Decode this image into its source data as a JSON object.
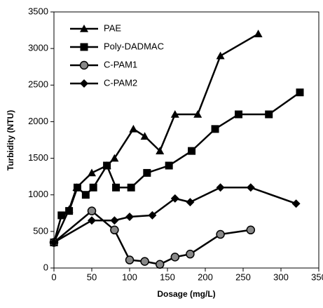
{
  "chart_data": {
    "type": "line",
    "xlabel": "Dosage (mg/L)",
    "ylabel": "Turbidity (NTU)",
    "xlim": [
      0,
      350
    ],
    "ylim": [
      0,
      3500
    ],
    "xticks": [
      0,
      50,
      100,
      150,
      200,
      250,
      300,
      350
    ],
    "yticks": [
      0,
      500,
      1000,
      1500,
      2000,
      2500,
      3000,
      3500
    ],
    "legend": "upper left",
    "series": [
      {
        "name": "PAE",
        "color": "#000000",
        "marker": "triangle",
        "x": [
          0,
          20,
          30,
          50,
          70,
          80,
          105,
          120,
          140,
          160,
          190,
          220,
          270
        ],
        "values": [
          350,
          800,
          1100,
          1300,
          1400,
          1500,
          1900,
          1800,
          1600,
          2100,
          2100,
          2900,
          3200
        ]
      },
      {
        "name": "Poly-DADMAC",
        "color": "#000000",
        "marker": "square",
        "x": [
          0,
          10,
          20,
          31,
          42,
          52,
          70,
          82,
          102,
          123,
          152,
          182,
          213,
          244,
          284,
          325
        ],
        "values": [
          350,
          720,
          780,
          1100,
          1000,
          1100,
          1400,
          1100,
          1100,
          1300,
          1400,
          1600,
          1900,
          2100,
          2100,
          2400
        ]
      },
      {
        "name": "C-PAM1",
        "color": "#000000",
        "marker": "circle",
        "x": [
          0,
          50,
          80,
          100,
          120,
          140,
          160,
          180,
          220,
          260
        ],
        "values": [
          350,
          780,
          520,
          110,
          90,
          50,
          150,
          190,
          460,
          520
        ]
      },
      {
        "name": "C-PAM2",
        "color": "#000000",
        "marker": "diamond",
        "x": [
          0,
          50,
          80,
          100,
          130,
          160,
          180,
          220,
          260,
          320
        ],
        "values": [
          350,
          650,
          650,
          700,
          720,
          950,
          900,
          1100,
          1100,
          880
        ]
      }
    ]
  }
}
